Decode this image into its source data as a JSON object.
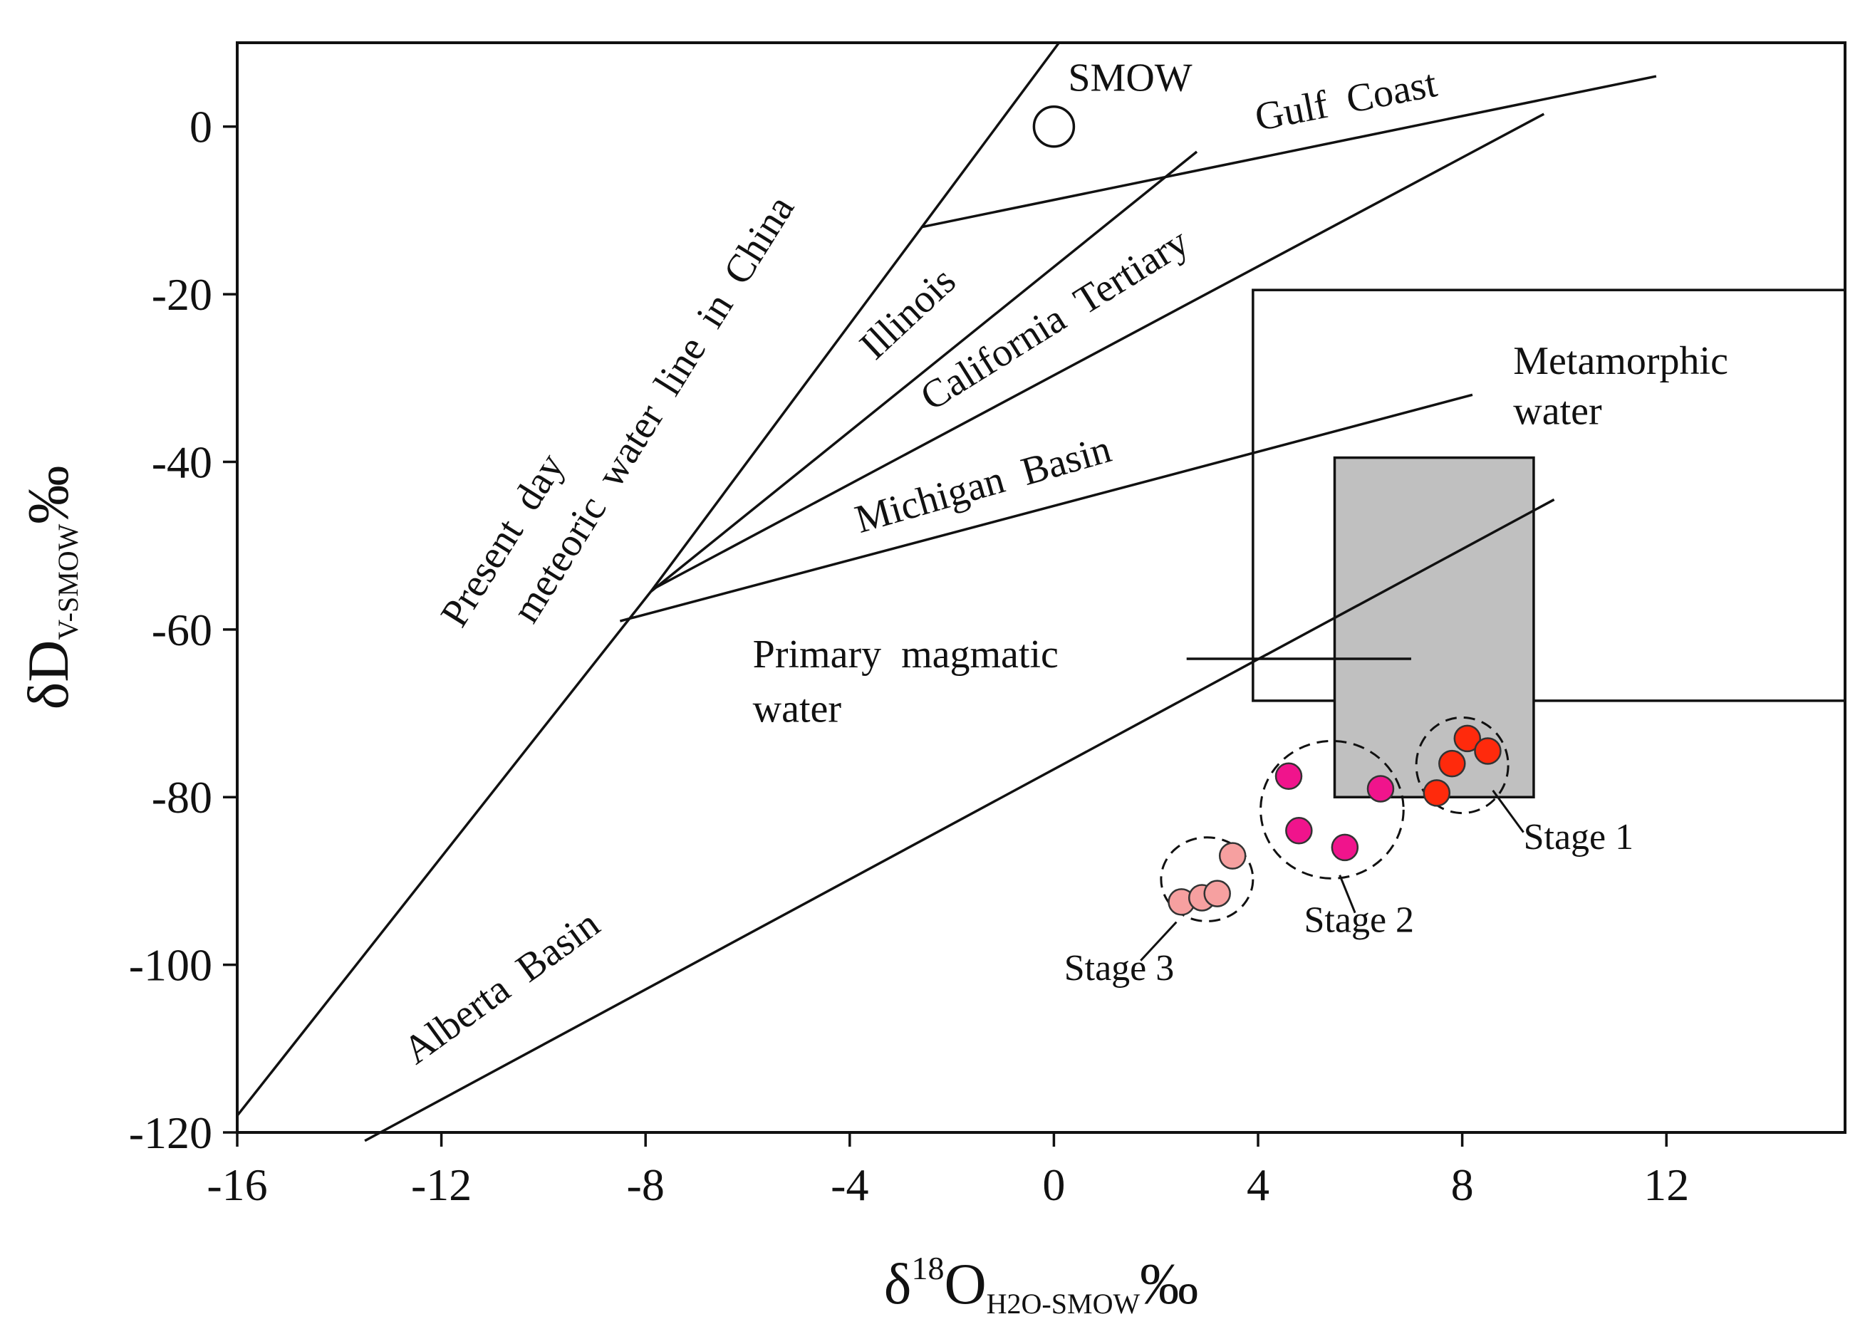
{
  "chart_data": {
    "type": "scatter",
    "title": "",
    "xlabel": {
      "prefix": "δ",
      "sup": "18",
      "main": "O",
      "sub": "H2O-SMOW",
      "suffix": "‰"
    },
    "ylabel": {
      "main": "δD",
      "sub": "V-SMOW",
      "suffix": "‰"
    },
    "xlim": [
      -16,
      15.5
    ],
    "ylim": [
      -120,
      10
    ],
    "xticks": [
      -16,
      -12,
      -8,
      -4,
      0,
      4,
      8,
      12
    ],
    "yticks": [
      0,
      -20,
      -40,
      -60,
      -80,
      -100,
      -120
    ],
    "lines": [
      {
        "name": "meteoric",
        "points": [
          [
            -16,
            -118
          ],
          [
            -7.9,
            -55.5
          ],
          [
            0.1,
            10
          ]
        ]
      },
      {
        "name": "illinois",
        "points": [
          [
            -7.9,
            -55.5
          ],
          [
            2.8,
            -3
          ]
        ]
      },
      {
        "name": "gulf-coast",
        "points": [
          [
            -2.6,
            -12
          ],
          [
            11.8,
            6
          ]
        ]
      },
      {
        "name": "california-tertiary",
        "points": [
          [
            -7.8,
            -55
          ],
          [
            9.6,
            1.5
          ]
        ]
      },
      {
        "name": "michigan-basin",
        "points": [
          [
            -8.5,
            -59
          ],
          [
            8.2,
            -32
          ]
        ]
      },
      {
        "name": "alberta-basin",
        "points": [
          [
            -13.5,
            -121
          ],
          [
            9.8,
            -44.5
          ]
        ]
      },
      {
        "name": "magmatic-leader",
        "points": [
          [
            2.6,
            -63.5
          ],
          [
            7,
            -63.5
          ]
        ]
      }
    ],
    "regions": [
      {
        "name": "metamorphic-water",
        "x": [
          3.9,
          15.5
        ],
        "y": [
          -68.5,
          -19.5
        ],
        "fill": "none"
      },
      {
        "name": "primary-magmatic-water",
        "x": [
          5.5,
          9.4
        ],
        "y": [
          -80,
          -39.5
        ],
        "fill": "#c0c0c0"
      }
    ],
    "reference_points": [
      {
        "name": "SMOW",
        "label": "SMOW",
        "x": 0,
        "y": 0
      }
    ],
    "series": [
      {
        "name": "Stage 1",
        "color": "#ff2a0c",
        "points": [
          [
            8.1,
            -73
          ],
          [
            8.5,
            -74.5
          ],
          [
            7.8,
            -76
          ],
          [
            7.5,
            -79.5
          ]
        ]
      },
      {
        "name": "Stage 2",
        "color": "#f0148c",
        "points": [
          [
            4.6,
            -77.5
          ],
          [
            6.4,
            -79
          ],
          [
            4.8,
            -84
          ],
          [
            5.7,
            -86
          ]
        ]
      },
      {
        "name": "Stage 3",
        "color": "#f6a0a0",
        "points": [
          [
            3.5,
            -87
          ],
          [
            2.5,
            -92.5
          ],
          [
            2.9,
            -92
          ],
          [
            3.2,
            -91.5
          ]
        ]
      }
    ],
    "ellipses": [
      {
        "name": "stage-1-ellipse",
        "cx": 8.0,
        "cy": -76.2,
        "rx": 0.9,
        "ry": 5.7
      },
      {
        "name": "stage-2-ellipse",
        "cx": 5.45,
        "cy": -81.5,
        "rx": 1.4,
        "ry": 8.2
      },
      {
        "name": "stage-3-ellipse",
        "cx": 3.0,
        "cy": -89.8,
        "rx": 0.9,
        "ry": 5.0
      }
    ],
    "annotations": [
      {
        "name": "label-meteoric-line-1",
        "text": "Present day",
        "x": -11.6,
        "y": -60,
        "angle": -58
      },
      {
        "name": "label-meteoric-line-2",
        "text": "meteoric water line in China",
        "x": -10.2,
        "y": -59.5,
        "angle": -58
      },
      {
        "name": "label-illinois",
        "text": "Illinois",
        "x": -3.5,
        "y": -28,
        "angle": -43
      },
      {
        "name": "label-california-tertiary",
        "text": "California Tertiary",
        "x": -2.4,
        "y": -34,
        "angle": -32
      },
      {
        "name": "label-gulf-coast",
        "text": "Gulf Coast",
        "x": 4.0,
        "y": -0.5,
        "angle": -11
      },
      {
        "name": "label-michigan-basin",
        "text": "Michigan Basin",
        "x": -3.8,
        "y": -48.5,
        "angle": -16
      },
      {
        "name": "label-alberta-basin",
        "text": "Alberta Basin",
        "x": -12.5,
        "y": -112,
        "angle": -36
      },
      {
        "name": "label-magmatic-1",
        "text": "Primary magmatic",
        "x": -5.9,
        "y": -64.5,
        "angle": 0
      },
      {
        "name": "label-magmatic-2",
        "text": "water",
        "x": -5.9,
        "y": -71,
        "angle": 0
      },
      {
        "name": "label-metamorphic-1",
        "text": "Metamorphic",
        "x": 9.0,
        "y": -29.5,
        "angle": 0
      },
      {
        "name": "label-metamorphic-2",
        "text": "water",
        "x": 9.0,
        "y": -35.5,
        "angle": 0
      }
    ],
    "stage_labels": [
      {
        "name": "stage-1",
        "text": "Stage 1",
        "x": 9.2,
        "y": -86.2,
        "leader": [
          [
            8.6,
            -79.2
          ],
          [
            9.2,
            -84.2
          ]
        ]
      },
      {
        "name": "stage-2",
        "text": "Stage 2",
        "x": 4.9,
        "y": -96.1,
        "leader": [
          [
            5.6,
            -89.3
          ],
          [
            5.9,
            -93.8
          ]
        ]
      },
      {
        "name": "stage-3",
        "text": "Stage 3",
        "x": 0.2,
        "y": -101.8,
        "leader": [
          [
            2.4,
            -94.9
          ],
          [
            1.7,
            -99.5
          ]
        ]
      }
    ]
  }
}
